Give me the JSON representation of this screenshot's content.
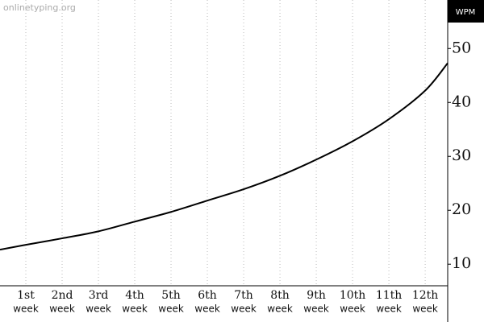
{
  "watermark": "onlinetyping.org",
  "chart_data": {
    "type": "line",
    "y_axis_label": "WPM",
    "x": [
      0.289,
      1,
      2,
      3,
      4,
      5,
      6,
      7,
      8,
      9,
      10,
      11,
      12,
      12.62
    ],
    "series": [
      {
        "name": null,
        "color": "#000000",
        "values": [
          12.7,
          13.6,
          14.8,
          16.1,
          17.9,
          19.7,
          21.8,
          23.9,
          26.4,
          29.4,
          32.8,
          36.9,
          42.2,
          47.3
        ]
      }
    ],
    "xlim": [
      0.289,
      12.62
    ],
    "xticks": [
      {
        "value": 1,
        "label": "1st"
      },
      {
        "value": 2,
        "label": "2nd"
      },
      {
        "value": 3,
        "label": "3rd"
      },
      {
        "value": 4,
        "label": "4th"
      },
      {
        "value": 5,
        "label": "5th"
      },
      {
        "value": 6,
        "label": "6th"
      },
      {
        "value": 7,
        "label": "7th"
      },
      {
        "value": 8,
        "label": "8th"
      },
      {
        "value": 9,
        "label": "9th"
      },
      {
        "value": 10,
        "label": "10th"
      },
      {
        "value": 11,
        "label": "11th"
      },
      {
        "value": 12,
        "label": "12th"
      }
    ],
    "x_tick_sublabel": "week",
    "ylim": [
      6,
      59
    ],
    "yticks": [
      10,
      20,
      30,
      40,
      50
    ],
    "grid": true
  }
}
